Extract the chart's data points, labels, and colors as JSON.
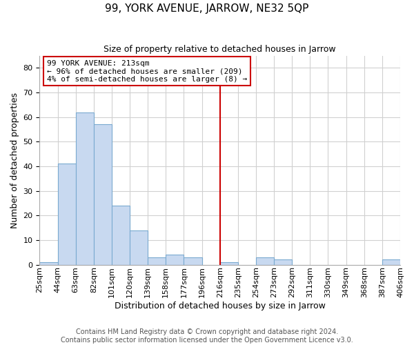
{
  "title": "99, YORK AVENUE, JARROW, NE32 5QP",
  "subtitle": "Size of property relative to detached houses in Jarrow",
  "xlabel": "Distribution of detached houses by size in Jarrow",
  "ylabel": "Number of detached properties",
  "footer_line1": "Contains HM Land Registry data © Crown copyright and database right 2024.",
  "footer_line2": "Contains public sector information licensed under the Open Government Licence v3.0.",
  "bin_labels": [
    "25sqm",
    "44sqm",
    "63sqm",
    "82sqm",
    "101sqm",
    "120sqm",
    "139sqm",
    "158sqm",
    "177sqm",
    "196sqm",
    "216sqm",
    "235sqm",
    "254sqm",
    "273sqm",
    "292sqm",
    "311sqm",
    "330sqm",
    "349sqm",
    "368sqm",
    "387sqm",
    "406sqm"
  ],
  "bar_heights": [
    1,
    41,
    62,
    57,
    24,
    14,
    3,
    4,
    3,
    0,
    1,
    0,
    3,
    2,
    0,
    0,
    0,
    0,
    0,
    2,
    0
  ],
  "bar_color": "#c8d9f0",
  "bar_edge_color": "#7aaad0",
  "vline_x_index": 10,
  "vline_color": "#cc0000",
  "annotation_title": "99 YORK AVENUE: 213sqm",
  "annotation_line1": "← 96% of detached houses are smaller (209)",
  "annotation_line2": "4% of semi-detached houses are larger (8) →",
  "annotation_box_color": "#ffffff",
  "annotation_box_edge_color": "#cc0000",
  "ylim": [
    0,
    85
  ],
  "yticks": [
    0,
    10,
    20,
    30,
    40,
    50,
    60,
    70,
    80
  ],
  "background_color": "#ffffff",
  "grid_color": "#d0d0d0",
  "title_fontsize": 11,
  "subtitle_fontsize": 9,
  "axis_label_fontsize": 9,
  "tick_fontsize": 8,
  "annotation_fontsize": 8,
  "footer_fontsize": 7
}
